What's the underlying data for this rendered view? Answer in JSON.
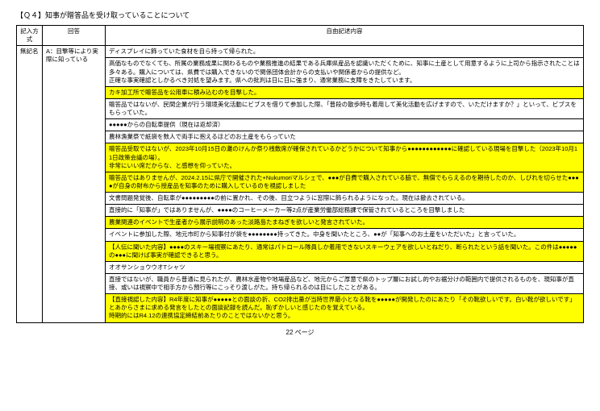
{
  "title": "【Ｑ４】知事が贈答品を受け取っていることについて",
  "headers": {
    "method": "記入方式",
    "answer": "回答",
    "content": "自由記述内容"
  },
  "method_cell": "無記名",
  "answer_cell": "A：目撃等により実際に知っている",
  "page_label": "22 ページ",
  "highlight_color": "#ffff00",
  "rows": [
    {
      "hl": false,
      "text": "ディスプレイに飾っていた食材を自ら持って帰られた。"
    },
    {
      "hl": false,
      "text": "高価なものでなくても、所属の業務成果に関わるものや業務推進の結果である兵庫県産品を認識いただくために、知事に土産として用意するように上司から指示されたことは多々ある。購入については、県費では購入できないので関係団体会計からの支払いや関係者からの提供など。\n正確な事実確認としかるべき対処を望みます。県への批判は日に日に強まり、通常業務に支障をきたしています。"
    },
    {
      "hl": true,
      "text": "カキ加工所で贈答品を公用車に積み込むのを目撃した。"
    },
    {
      "hl": false,
      "text": "贈答品ではないが、民間企業が行う環境美化活動にビブスを借りて参加した際、「普段の散歩時も着用して美化活動を広げますので、いただけますか？」といって、ビブスをもらっていた。"
    },
    {
      "hl": false,
      "text": "●●●●●からの自転車提供（現在は返却済）"
    },
    {
      "hl": false,
      "text": "農林漁業祭で紙袋を数人で両手に抱えるほどのお土産をもらっていた"
    },
    {
      "hl": true,
      "text": "贈答品受取ではないが、2023年10月15日の灘のけんか祭り桟敷席が確保されているかどうかについて知事から●●●●●●●●●●●●に確認している現場を目撃した（2023年10月11日政策会議の場）。\n非常にいい席だからな、と感想を仰っていた。"
    },
    {
      "hl": true,
      "text": "贈答品ではありませんが、2024.2.15に県庁で開催された+Nukumoriマルシェで、●●●が自費で購入されている脇で、無償でもらえるのを期待したのか、しびれを切らせた●●●●が自身の財布から授産品を知事のために購入しているのを視認しました"
    },
    {
      "hl": false,
      "text": "文書問題発覚後、自転車が●●●●●●●●●の前に置かれ、その後、目立つように窓際に飾られるようになった。現在は撤去されている。"
    },
    {
      "hl": false,
      "text": "直接的に「知事が」ではありませんが、●●●●のコーヒーメーカー等2点が産業労働部総務課で保管されているところを目撃しました"
    },
    {
      "hl": true,
      "text": "農業関連のイベントで生産者から展示説明のあった淡路島たまねぎを欲しいと発言されていた。"
    },
    {
      "hl": false,
      "text": "イベントに参加した際、地元市町から知事付が袋を●●●●●●●●持ってきた。中身を聞いたところ、●●が「知事へのお土産をいただいた」と言っていた。"
    },
    {
      "hl": true,
      "text": "【人伝に聞いた内容】●●●●のスキー場視察にあたり、通常はパトロール隊員しか着用できないスキーウェアを欲しいとねだり、断られたという話を聞いた。この件は●●●●●の●●●に聞けば事実が確認できると思う。"
    },
    {
      "hl": false,
      "text": "オオサンショウウオTシャツ"
    },
    {
      "hl": false,
      "text": "直接ではないが、職員から普通に見られたが、農林水産物や地場産品など、地元からご厚意で県のトップ層にお試し的やお裾分けの範囲内で提供されるものを、現知事が直接、或いは視察中で相手方から預行等にこっそり渡しがた。持ち帰られるのは目にしたことがある。"
    },
    {
      "hl": true,
      "text": "【直接視認した内容】R4年度に知事が●●●●●との面談の折、CO2排出量が当時世界最小となる靴を●●●●●が開発したのにあたり「その靴欲しいです。白い靴が欲しいです」とあからさまに求める発言をしたとの面談記録を読んだ。恥ずかしいと感じたのを覚えている。\n時期的にはR4.12の連携協定締結前あたりのことではないかと思う。"
    }
  ]
}
